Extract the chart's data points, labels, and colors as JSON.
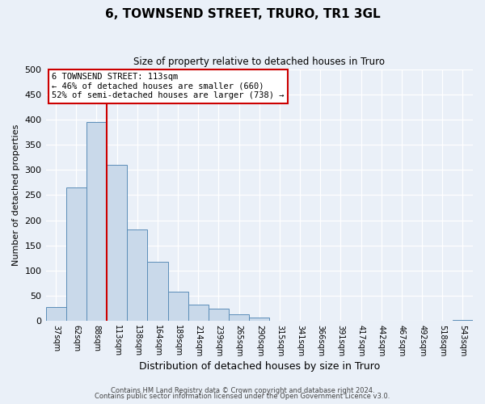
{
  "title": "6, TOWNSEND STREET, TRURO, TR1 3GL",
  "subtitle": "Size of property relative to detached houses in Truro",
  "xlabel": "Distribution of detached houses by size in Truro",
  "ylabel": "Number of detached properties",
  "bin_labels": [
    "37sqm",
    "62sqm",
    "88sqm",
    "113sqm",
    "138sqm",
    "164sqm",
    "189sqm",
    "214sqm",
    "239sqm",
    "265sqm",
    "290sqm",
    "315sqm",
    "341sqm",
    "366sqm",
    "391sqm",
    "417sqm",
    "442sqm",
    "467sqm",
    "492sqm",
    "518sqm",
    "543sqm"
  ],
  "bar_values": [
    28,
    265,
    395,
    310,
    182,
    117,
    58,
    32,
    25,
    13,
    6,
    1,
    0,
    0,
    0,
    0,
    0,
    0,
    0,
    0,
    2
  ],
  "bar_color": "#c9d9ea",
  "bar_edge_color": "#5b8db8",
  "vline_x": 3,
  "vline_color": "#cc0000",
  "annotation_title": "6 TOWNSEND STREET: 113sqm",
  "annotation_line1": "← 46% of detached houses are smaller (660)",
  "annotation_line2": "52% of semi-detached houses are larger (738) →",
  "annotation_box_color": "#ffffff",
  "annotation_box_edge_color": "#cc0000",
  "ylim": [
    0,
    500
  ],
  "yticks": [
    0,
    50,
    100,
    150,
    200,
    250,
    300,
    350,
    400,
    450,
    500
  ],
  "footer1": "Contains HM Land Registry data © Crown copyright and database right 2024.",
  "footer2": "Contains public sector information licensed under the Open Government Licence v3.0.",
  "bg_color": "#eaf0f8",
  "plot_bg_color": "#eaf0f8",
  "title_fontsize": 11,
  "subtitle_fontsize": 8.5,
  "ylabel_fontsize": 8,
  "xlabel_fontsize": 9
}
